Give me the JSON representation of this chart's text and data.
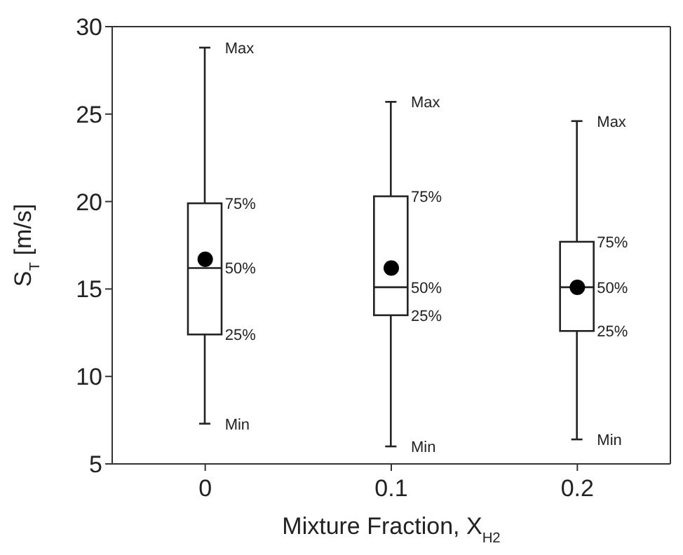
{
  "chart_data": {
    "type": "box",
    "xlabel": "Mixture Fraction, X$_{H2}$",
    "ylabel": "S$_{T}$ [m/s]",
    "categories": [
      "0",
      "0.1",
      "0.2"
    ],
    "boxes": [
      {
        "low": 7.3,
        "q1": 12.4,
        "median": 16.2,
        "q3": 19.9,
        "high": 28.8,
        "mean": 16.7
      },
      {
        "low": 6.0,
        "q1": 13.5,
        "median": 15.1,
        "q3": 20.3,
        "high": 25.7,
        "mean": 16.2
      },
      {
        "low": 6.4,
        "q1": 12.6,
        "median": 15.1,
        "q3": 17.7,
        "high": 24.6,
        "mean": 15.1
      }
    ],
    "ylim": [
      5,
      30
    ],
    "yticks": [
      5,
      10,
      15,
      20,
      25,
      30
    ],
    "grid": false,
    "legend": false,
    "annotations": [
      {
        "text": "Max",
        "x": "0",
        "y": 28.8
      },
      {
        "text": "75%",
        "x": "0",
        "y": 19.9
      },
      {
        "text": "50%",
        "x": "0",
        "y": 16.2
      },
      {
        "text": "25%",
        "x": "0",
        "y": 12.4
      },
      {
        "text": "Min",
        "x": "0",
        "y": 7.3
      },
      {
        "text": "Max",
        "x": "0.1",
        "y": 25.7
      },
      {
        "text": "75%",
        "x": "0.1",
        "y": 20.3
      },
      {
        "text": "50%",
        "x": "0.1",
        "y": 15.1
      },
      {
        "text": "25%",
        "x": "0.1",
        "y": 13.5
      },
      {
        "text": "Min",
        "x": "0.1",
        "y": 6.0
      },
      {
        "text": "Max",
        "x": "0.2",
        "y": 24.6
      },
      {
        "text": "75%",
        "x": "0.2",
        "y": 17.7
      },
      {
        "text": "50%",
        "x": "0.2",
        "y": 15.1
      },
      {
        "text": "25%",
        "x": "0.2",
        "y": 12.6
      },
      {
        "text": "Min",
        "x": "0.2",
        "y": 6.4
      }
    ]
  }
}
